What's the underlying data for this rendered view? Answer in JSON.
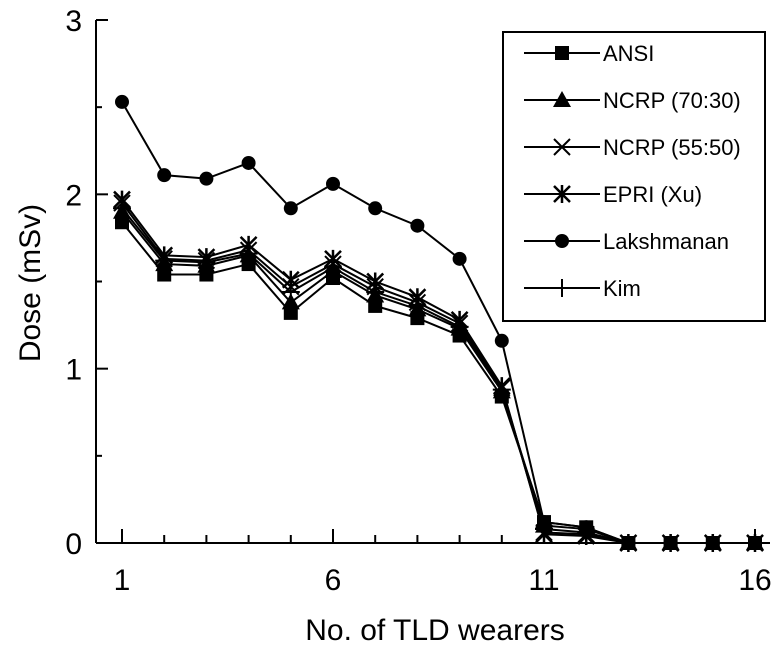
{
  "chart_data": {
    "type": "line",
    "title": "",
    "xlabel": "No. of TLD wearers",
    "ylabel": "Dose (mSv)",
    "xlim": [
      1,
      16
    ],
    "ylim": [
      0,
      3
    ],
    "x_ticks": [
      1,
      6,
      11,
      16
    ],
    "y_ticks": [
      0,
      1,
      2,
      3
    ],
    "grid": false,
    "legend_position": "top-right",
    "x": [
      1,
      2,
      3,
      4,
      5,
      6,
      7,
      8,
      9,
      10,
      11,
      12,
      13,
      14,
      15,
      16
    ],
    "series": [
      {
        "name": "ANSI",
        "marker": "square",
        "values": [
          1.84,
          1.54,
          1.54,
          1.6,
          1.32,
          1.52,
          1.36,
          1.29,
          1.19,
          0.84,
          0.12,
          0.09,
          0.0,
          0.0,
          0.0,
          0.0
        ]
      },
      {
        "name": "NCRP (70:30)",
        "marker": "triangle",
        "values": [
          1.9,
          1.6,
          1.59,
          1.65,
          1.38,
          1.56,
          1.42,
          1.34,
          1.23,
          0.87,
          0.1,
          0.08,
          0.0,
          0.0,
          0.0,
          0.0
        ]
      },
      {
        "name": "NCRP (55:50)",
        "marker": "x",
        "values": [
          1.95,
          1.63,
          1.62,
          1.68,
          1.47,
          1.6,
          1.47,
          1.38,
          1.26,
          0.89,
          0.06,
          0.05,
          0.0,
          0.0,
          0.0,
          0.0
        ]
      },
      {
        "name": "EPRI (Xu)",
        "marker": "asterisk",
        "values": [
          1.97,
          1.65,
          1.64,
          1.71,
          1.51,
          1.63,
          1.5,
          1.41,
          1.28,
          0.9,
          0.05,
          0.04,
          0.0,
          0.0,
          0.0,
          0.0
        ]
      },
      {
        "name": "Lakshmanan",
        "marker": "circle",
        "values": [
          2.53,
          2.11,
          2.09,
          2.18,
          1.92,
          2.06,
          1.92,
          1.82,
          1.63,
          1.16,
          0.12,
          0.09,
          0.0,
          0.0,
          0.0,
          0.0
        ]
      },
      {
        "name": "Kim",
        "marker": "plus",
        "values": [
          1.92,
          1.62,
          1.61,
          1.66,
          1.44,
          1.58,
          1.44,
          1.36,
          1.24,
          0.88,
          0.08,
          0.06,
          0.0,
          0.0,
          0.0,
          0.0
        ]
      }
    ]
  }
}
